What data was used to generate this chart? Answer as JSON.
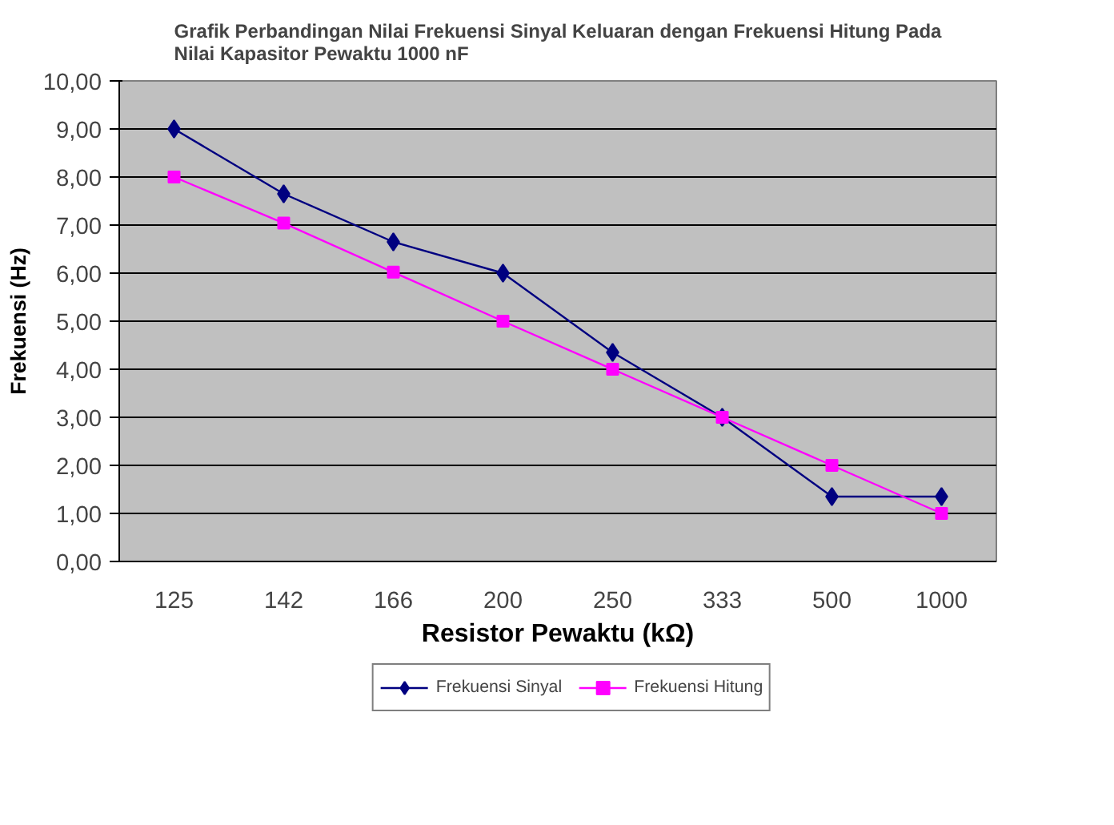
{
  "chart_data": {
    "type": "line",
    "title": "Grafik Perbandingan Nilai Frekuensi Sinyal Keluaran dengan Frekuensi Hitung Pada\nNilai Kapasitor Pewaktu 1000 nF",
    "xlabel": "Resistor Pewaktu (kΩ)",
    "ylabel": "Frekuensi (Hz)",
    "categories": [
      "125",
      "142",
      "166",
      "200",
      "250",
      "333",
      "500",
      "1000"
    ],
    "series": [
      {
        "name": "Frekuensi Sinyal",
        "color": "#000080",
        "marker": "diamond",
        "values": [
          9.0,
          7.65,
          6.65,
          6.0,
          4.35,
          3.0,
          1.35,
          1.35
        ]
      },
      {
        "name": "Frekuensi Hitung",
        "color": "#ff00ff",
        "marker": "square",
        "values": [
          8.0,
          7.04,
          6.02,
          5.0,
          4.0,
          3.0,
          2.0,
          1.0
        ]
      }
    ],
    "ylim": [
      0,
      10
    ],
    "yticks": [
      {
        "value": 0,
        "label": "0,00"
      },
      {
        "value": 1,
        "label": "1,00"
      },
      {
        "value": 2,
        "label": "2,00"
      },
      {
        "value": 3,
        "label": "3,00"
      },
      {
        "value": 4,
        "label": "4,00"
      },
      {
        "value": 5,
        "label": "5,00"
      },
      {
        "value": 6,
        "label": "6,00"
      },
      {
        "value": 7,
        "label": "7,00"
      },
      {
        "value": 8,
        "label": "8,00"
      },
      {
        "value": 9,
        "label": "9,00"
      },
      {
        "value": 10,
        "label": "10,00"
      }
    ],
    "grid": "y",
    "legend": "bottom",
    "line_style": "solid"
  }
}
